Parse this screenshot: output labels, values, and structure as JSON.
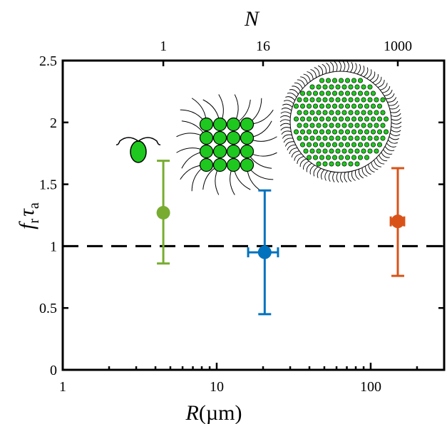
{
  "chart_data": {
    "type": "scatter",
    "title": "",
    "xlabel": "R(µm)",
    "xlabel_parts": {
      "var": "R",
      "unit": "(µm)"
    },
    "ylabel": "f_r τ_a",
    "ylabel_parts": {
      "f": "f",
      "f_sub": "r",
      "tau": "τ",
      "tau_sub": "a"
    },
    "top_xlabel": "N",
    "x_scale": "log",
    "xlim": [
      1,
      300
    ],
    "ylim": [
      0,
      2.5
    ],
    "x_ticks": [
      1,
      10,
      100
    ],
    "x_tick_labels": [
      "1",
      "10",
      "100"
    ],
    "y_ticks": [
      0,
      0.5,
      1,
      1.5,
      2,
      2.5
    ],
    "y_tick_labels": [
      "0",
      "0.5",
      "1",
      "1.5",
      "2",
      "2.5"
    ],
    "top_ticks": [
      {
        "x": 4.5,
        "label": "1"
      },
      {
        "x": 20,
        "label": "16"
      },
      {
        "x": 150,
        "label": "1000"
      }
    ],
    "reference_line": {
      "y": 1,
      "style": "dashed",
      "color": "#000000"
    },
    "grid": false,
    "series": [
      {
        "x": 4.5,
        "y": 1.27,
        "y_err_low": 0.86,
        "y_err_high": 1.69,
        "color": "#77ac30"
      },
      {
        "x": 20.5,
        "y": 0.95,
        "y_err_low": 0.45,
        "y_err_high": 1.45,
        "x_err_low": 16,
        "x_err_high": 25,
        "color": "#0072bd"
      },
      {
        "x": 150,
        "y": 1.2,
        "y_err_low": 0.76,
        "y_err_high": 1.63,
        "x_err_low": 135,
        "x_err_high": 165,
        "color": "#d95319"
      }
    ]
  },
  "insets": {
    "single_cell_icon": "single-cell-organism-icon",
    "colony_16_icon": "16-cell-colony-icon",
    "colony_1000_icon": "1000-cell-colony-icon",
    "cell_color": "#1ec81e"
  }
}
